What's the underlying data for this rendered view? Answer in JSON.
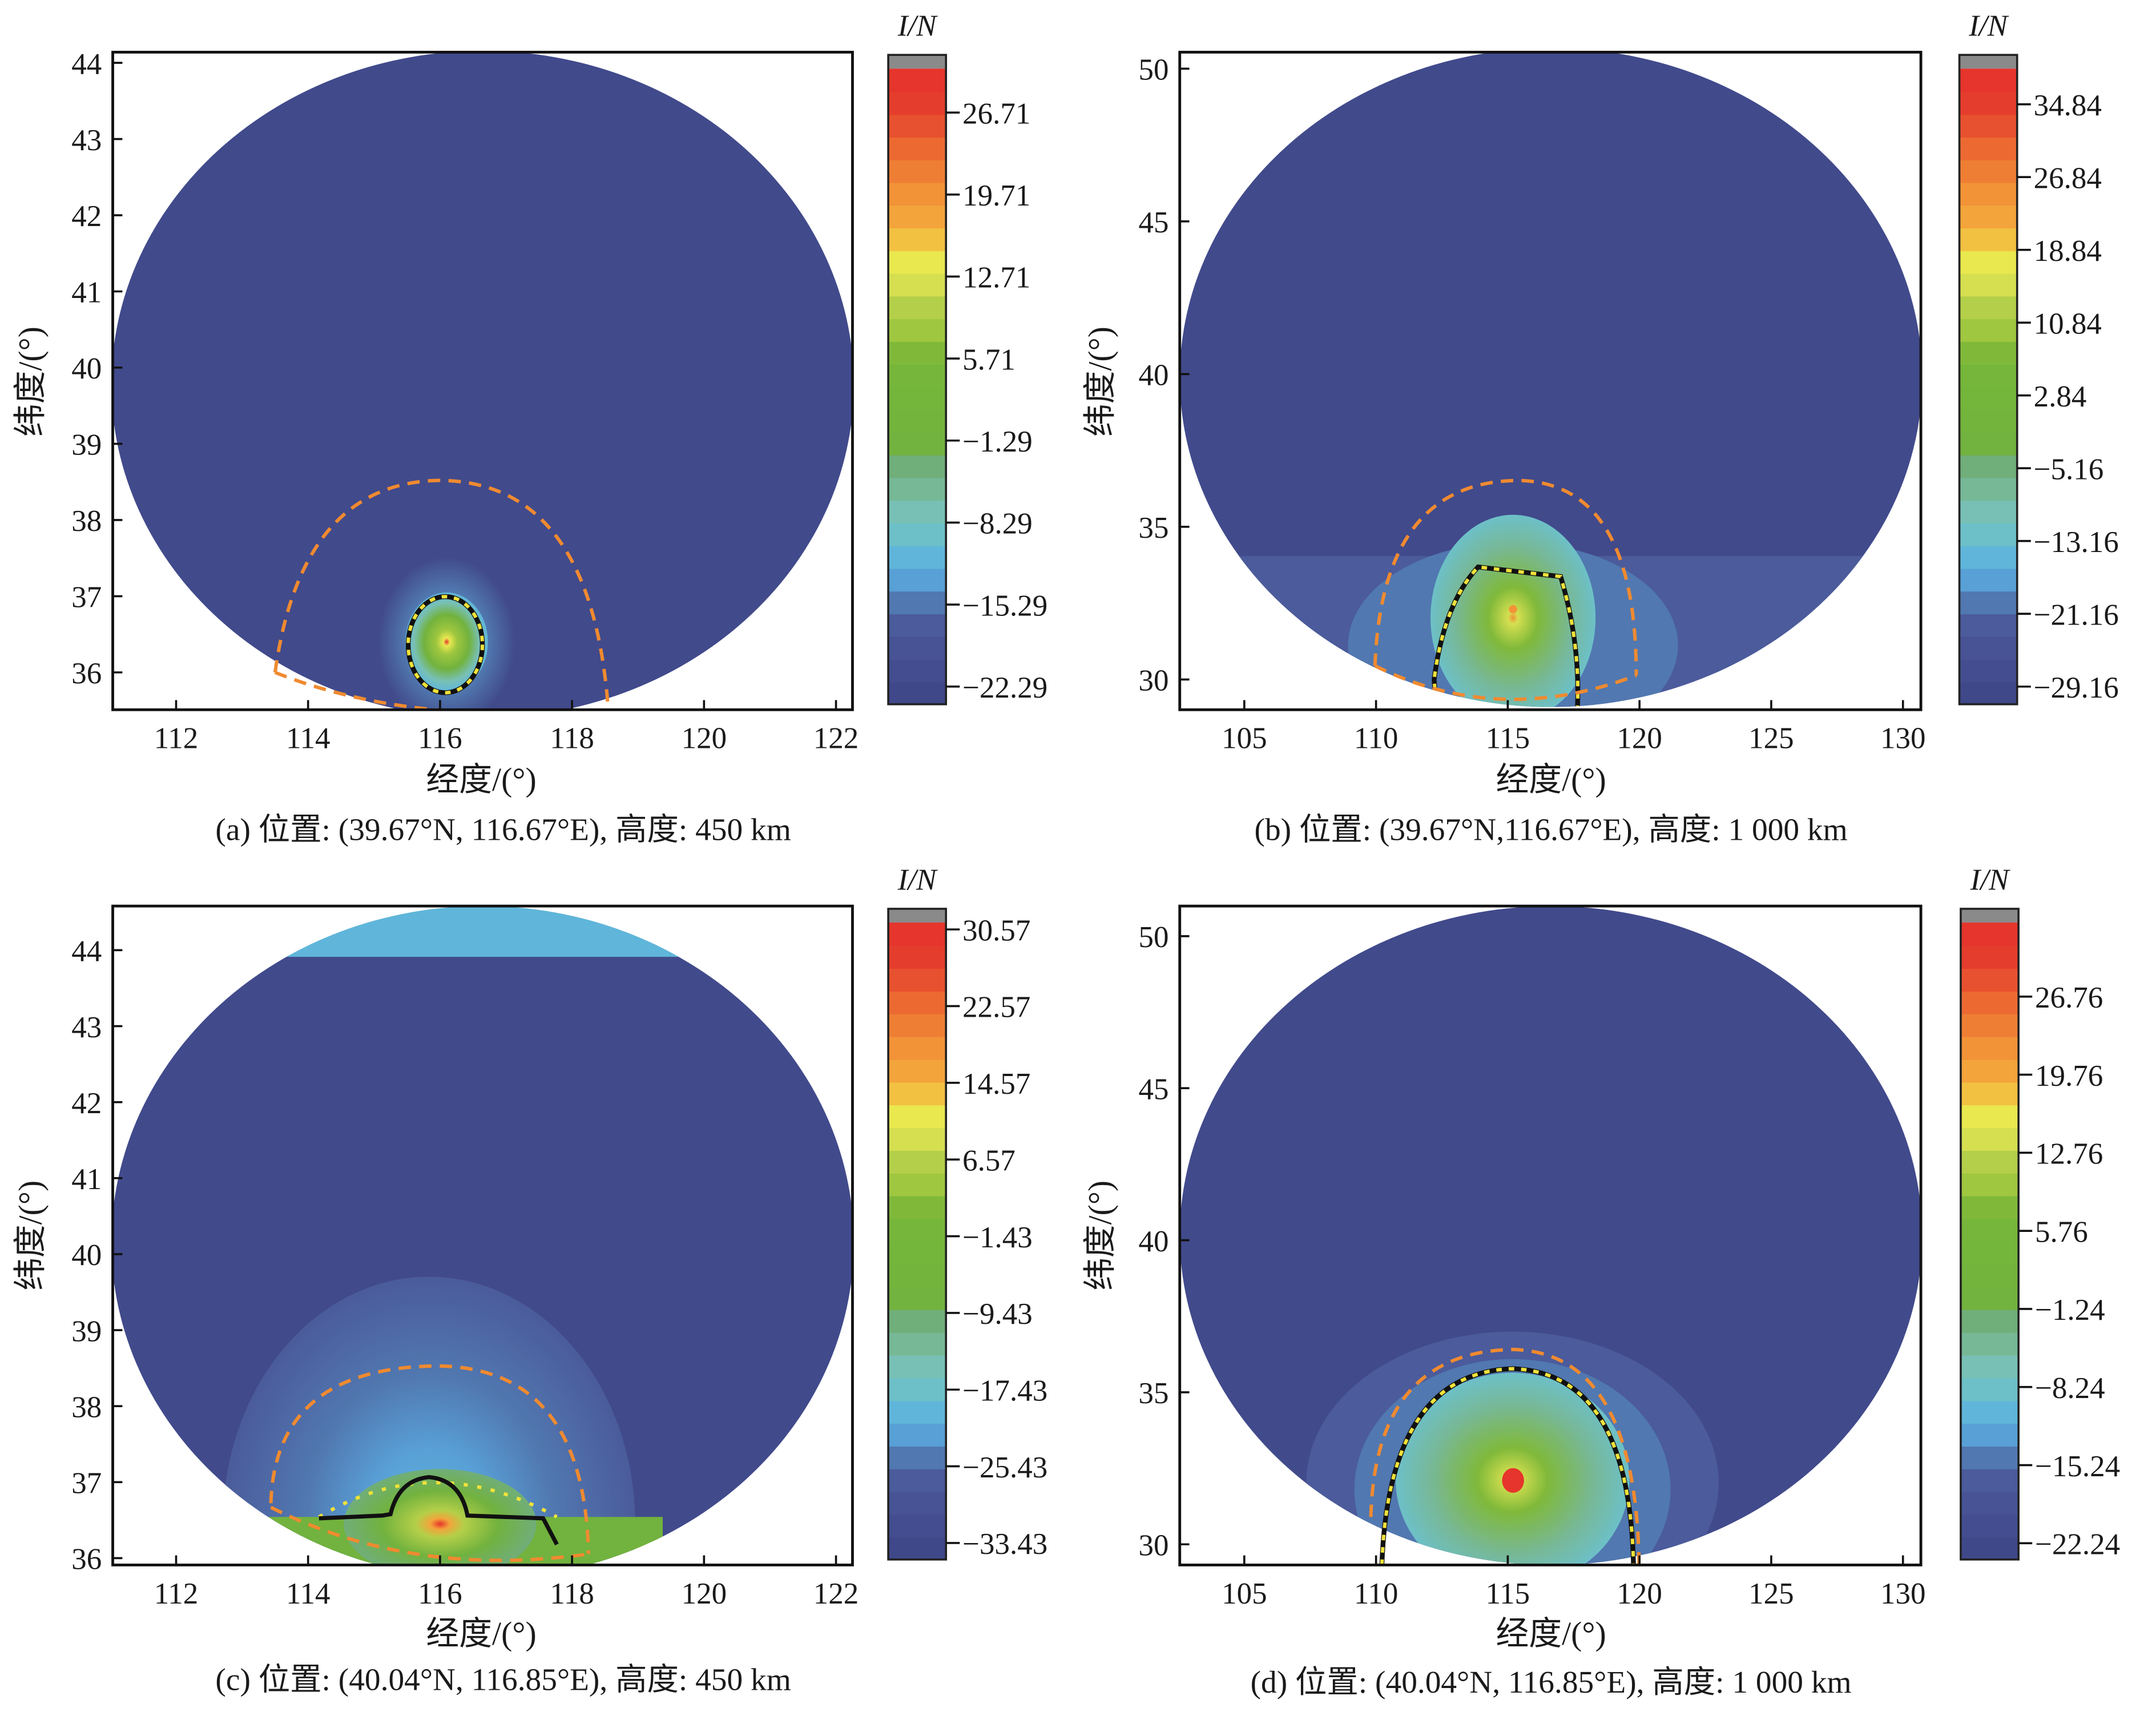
{
  "chart_data": {
    "type": "heatmap",
    "colormap": [
      "#3f4889",
      "#434d8f",
      "#475394",
      "#4b5b9b",
      "#5178b0",
      "#58a0d6",
      "#5fb6da",
      "#6dc0c8",
      "#78c0b6",
      "#77b897",
      "#70ae7a",
      "#72b23e",
      "#73b43c",
      "#74b53b",
      "#76b63a",
      "#80b93a",
      "#9fc73f",
      "#b4cf49",
      "#d5df50",
      "#e9e84f",
      "#f2c142",
      "#f3a43b",
      "#f29337",
      "#ef7e35",
      "#ec6a32",
      "#e8512f",
      "#e53d2d",
      "#e5352c"
    ],
    "overflow_color": "#8a8a8a",
    "region_color": "#414a8b",
    "panels": [
      {
        "id": "a",
        "caption": "(a) 位置: (39.67°N, 116.67°E), 高度: 450 km",
        "xlabel": "经度/(°)",
        "ylabel": "纬度/(°)",
        "cbar_label": "I/N",
        "xticks": [
          112,
          114,
          116,
          118,
          120,
          122
        ],
        "yticks": [
          36,
          37,
          38,
          39,
          40,
          41,
          42,
          43,
          44
        ],
        "xlim": [
          111.04,
          122.25
        ],
        "ylim": [
          35.51,
          44.14
        ],
        "cbar_ticks": [
          26.71,
          19.71,
          12.71,
          5.71,
          -1.29,
          -8.29,
          -15.29,
          -22.29
        ],
        "cbar_range": [
          -23.8,
          30.46
        ],
        "peak": {
          "lon": 116.1,
          "lat": 36.4
        }
      },
      {
        "id": "b",
        "caption": "(b) 位置: (39.67°N,116.67°E), 高度: 1 000 km",
        "xlabel": "经度/(°)",
        "ylabel": "纬度/(°)",
        "cbar_label": "I/N",
        "xticks": [
          105,
          110,
          115,
          120,
          125,
          130
        ],
        "yticks": [
          30,
          35,
          40,
          45,
          50
        ],
        "xlim": [
          102.55,
          130.68
        ],
        "ylim": [
          29.01,
          50.54
        ],
        "cbar_ticks": [
          34.84,
          26.84,
          18.84,
          10.84,
          2.84,
          -5.16,
          -13.16,
          -21.16,
          -29.16
        ],
        "cbar_range": [
          -31.1,
          38.76
        ],
        "peak": {
          "lon": 115.2,
          "lat": 32.3
        }
      },
      {
        "id": "c",
        "caption": "(c) 位置: (40.04°N, 116.85°E), 高度: 450 km",
        "xlabel": "经度/(°)",
        "ylabel": "纬度/(°)",
        "cbar_label": "I/N",
        "xticks": [
          112,
          114,
          116,
          118,
          120,
          122
        ],
        "yticks": [
          36,
          37,
          38,
          39,
          40,
          41,
          42,
          43,
          44
        ],
        "xlim": [
          111.04,
          122.25
        ],
        "ylim": [
          35.91,
          44.58
        ],
        "cbar_ticks": [
          30.57,
          22.57,
          14.57,
          6.57,
          -1.43,
          -9.43,
          -17.43,
          -25.43,
          -33.43
        ],
        "cbar_range": [
          -35.15,
          31.29
        ],
        "peak": {
          "lon": 116.0,
          "lat": 36.45
        }
      },
      {
        "id": "d",
        "caption": "(d) 位置: (40.04°N, 116.85°E), 高度: 1 000 km",
        "xlabel": "经度/(°)",
        "ylabel": "纬度/(°)",
        "cbar_label": "I/N",
        "xticks": [
          105,
          110,
          115,
          120,
          125,
          130
        ],
        "yticks": [
          30,
          35,
          40,
          45,
          50
        ],
        "xlim": [
          102.55,
          130.68
        ],
        "ylim": [
          29.32,
          50.99
        ],
        "cbar_ticks": [
          26.76,
          19.76,
          12.76,
          5.76,
          -1.24,
          -8.24,
          -15.24,
          -22.24
        ],
        "cbar_range": [
          -23.7,
          33.4
        ],
        "peak": {
          "lon": 115.2,
          "lat": 32.1
        }
      }
    ]
  }
}
